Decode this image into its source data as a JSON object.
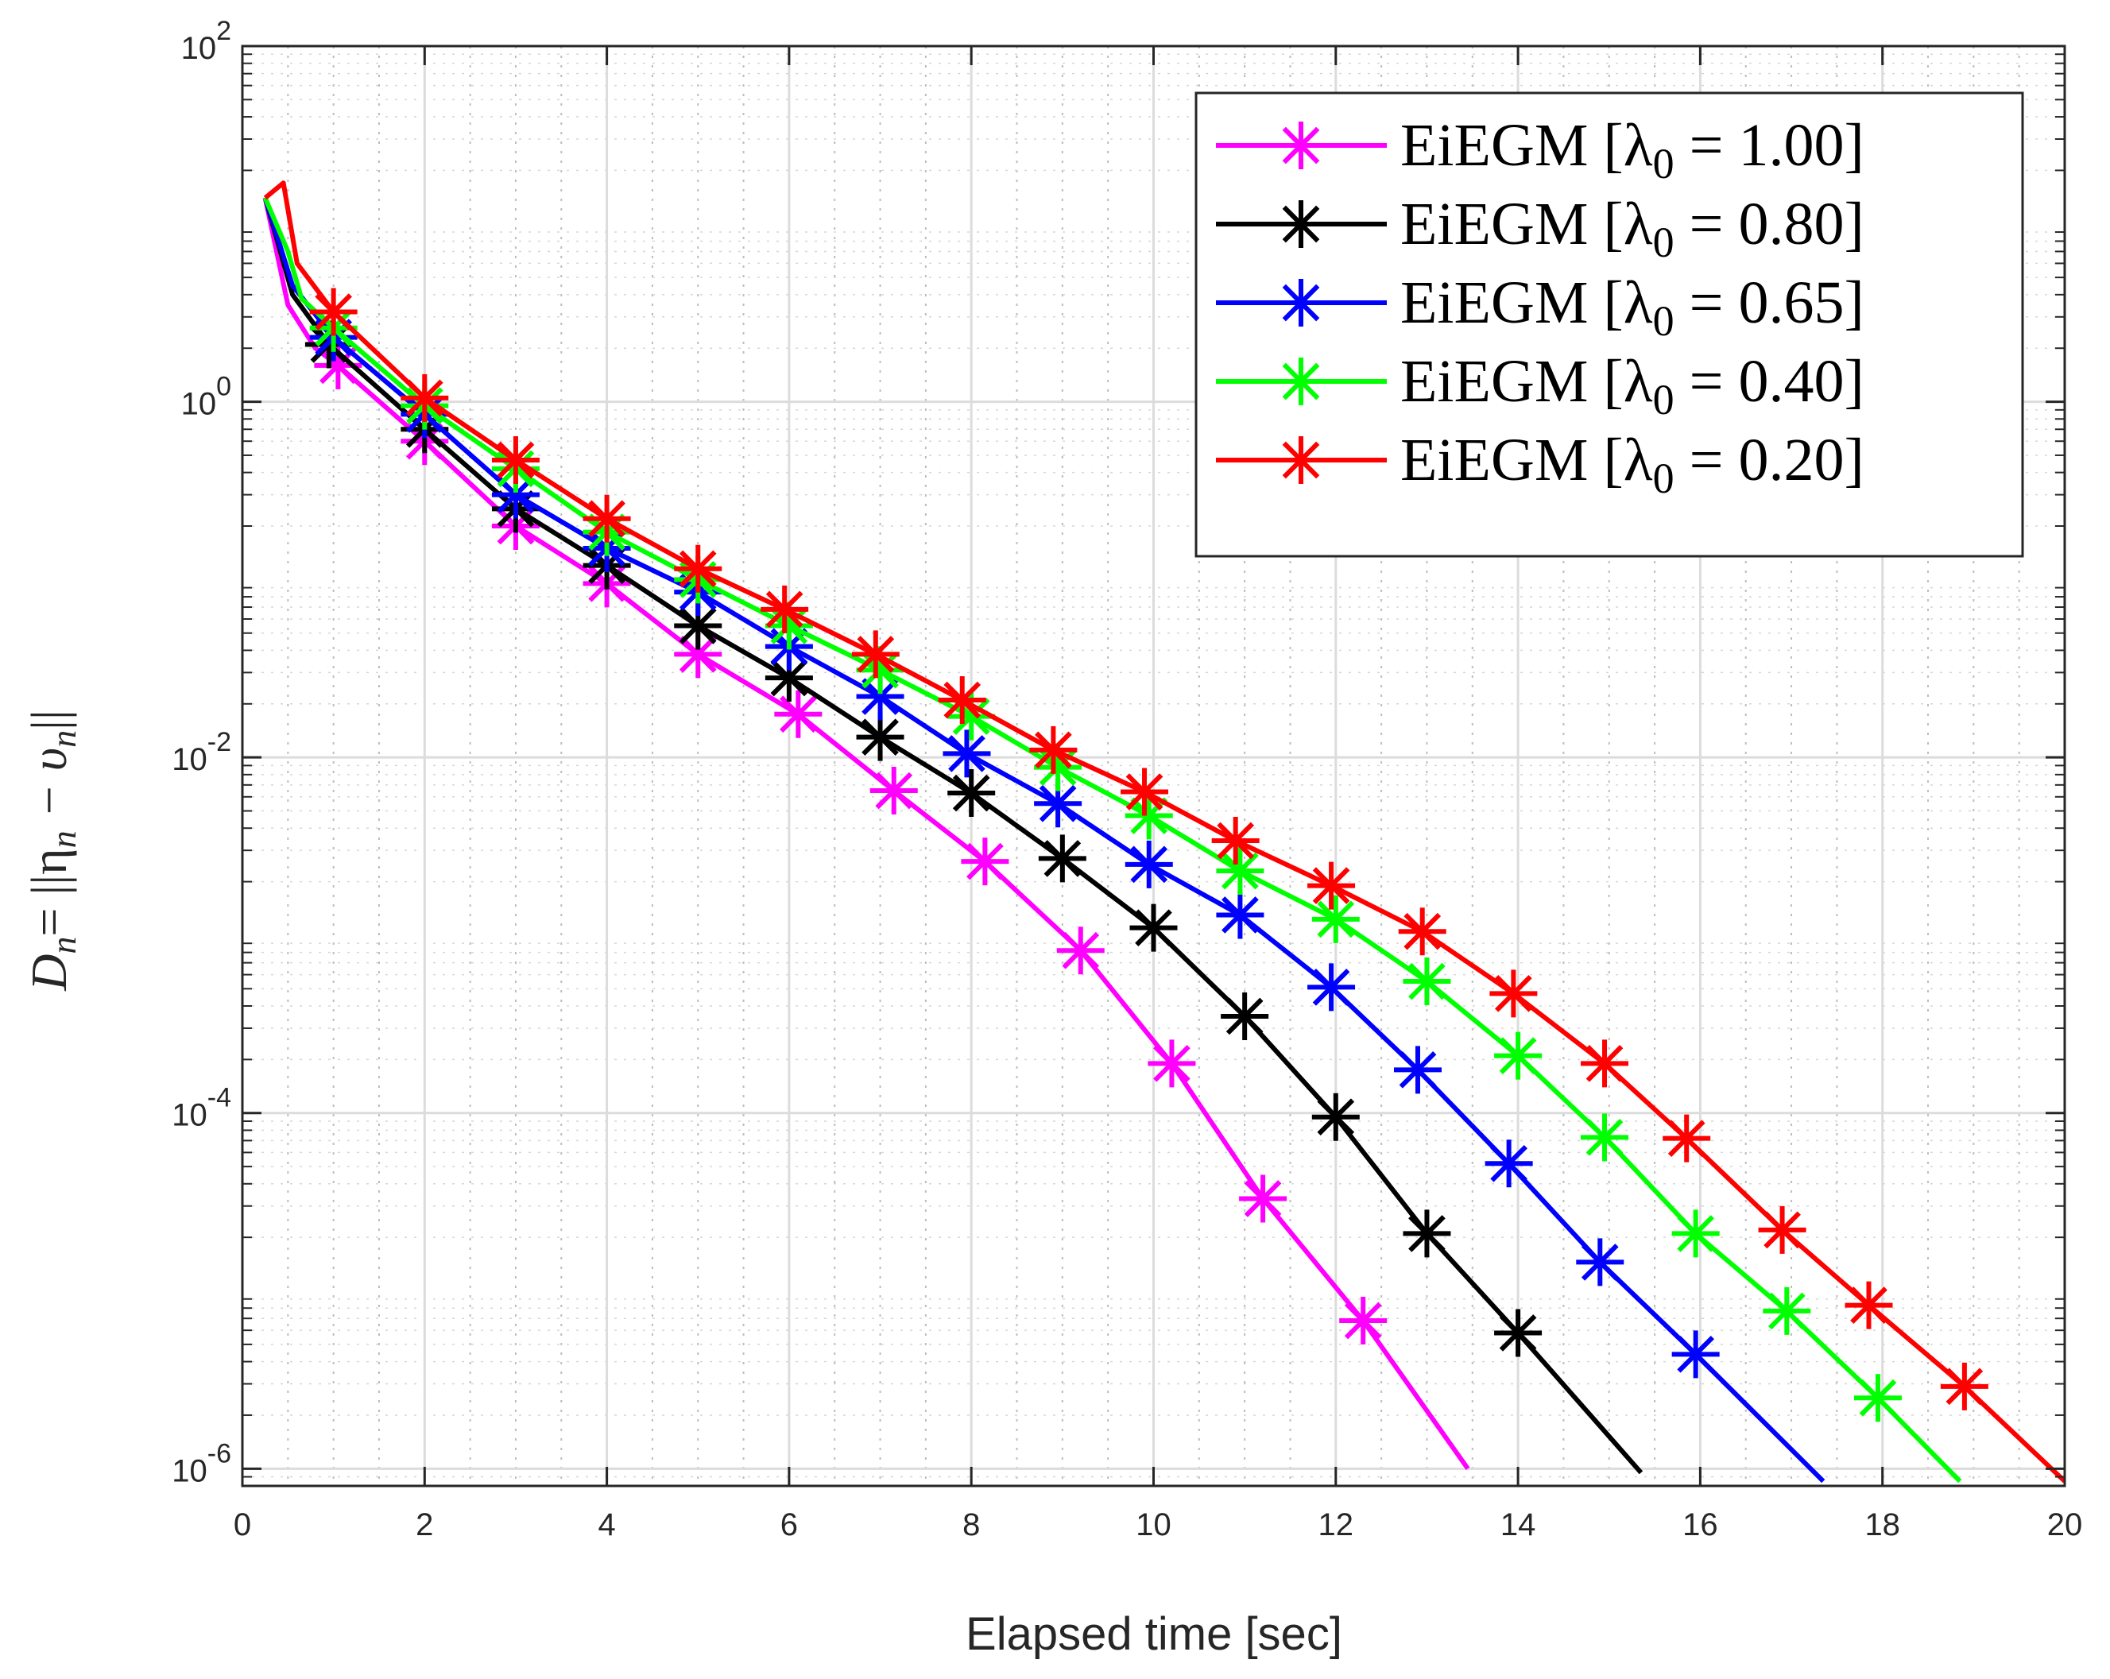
{
  "chart_data": {
    "type": "line",
    "yscale": "log",
    "xlabel": "Elapsed time [sec]",
    "ylabel": {
      "lhs": "D",
      "lhs_sub": "n",
      "rhs": "= ||η",
      "rhs_sub1": "n",
      "minus": " − υ",
      "rhs_sub2": "n",
      "close": "||"
    },
    "xlim": [
      0,
      20
    ],
    "ylim": [
      8e-07,
      100
    ],
    "x_ticks": [
      0,
      2,
      4,
      6,
      8,
      10,
      12,
      14,
      16,
      18,
      20
    ],
    "x_tick_labels": [
      "0",
      "2",
      "4",
      "6",
      "8",
      "10",
      "12",
      "14",
      "16",
      "18",
      "20"
    ],
    "y_ticks": [
      1e-06,
      0.0001,
      0.01,
      1,
      100
    ],
    "y_tick_labels": [
      {
        "base": "10",
        "exp": "-6"
      },
      {
        "base": "10",
        "exp": "-4"
      },
      {
        "base": "10",
        "exp": "-2"
      },
      {
        "base": "10",
        "exp": "0"
      },
      {
        "base": "10",
        "exp": "2"
      }
    ],
    "grid": true,
    "minor_grid_x": true,
    "legend_position": "top-right",
    "series": [
      {
        "name": "EiEGM [λ0 = 1.00]",
        "legend_prefix": "EiEGM [λ",
        "legend_sub": "0",
        "legend_suffix": " = 1.00]",
        "color": "#ff00ff",
        "x": [
          0.25,
          0.5,
          0.8,
          1.05,
          2.0,
          3.0,
          4.0,
          5.0,
          6.1,
          7.15,
          8.15,
          9.2,
          10.2,
          11.2,
          12.3,
          13.45
        ],
        "y": [
          14,
          3.5,
          2.0,
          1.6,
          0.6,
          0.2,
          0.095,
          0.038,
          0.0175,
          0.0065,
          0.0026,
          0.00082,
          0.00019,
          3.3e-05,
          6.8e-06,
          1e-06
        ],
        "marker_x": [
          1.05,
          2.0,
          3.0,
          4.0,
          5.0,
          6.1,
          7.15,
          8.15,
          9.2,
          10.2,
          11.2,
          12.3
        ],
        "marker_y": [
          1.6,
          0.6,
          0.2,
          0.095,
          0.038,
          0.0175,
          0.0065,
          0.0026,
          0.00082,
          0.00019,
          3.3e-05,
          6.8e-06
        ]
      },
      {
        "name": "EiEGM [λ0 = 0.80]",
        "legend_prefix": "EiEGM [λ",
        "legend_sub": "0",
        "legend_suffix": " = 0.80]",
        "color": "#000000",
        "x": [
          0.25,
          0.55,
          0.95,
          2.0,
          3.0,
          4.0,
          5.0,
          6.0,
          7.0,
          8.0,
          9.0,
          10.0,
          11.0,
          12.0,
          13.0,
          14.0,
          15.35
        ],
        "y": [
          14,
          4.0,
          2.1,
          0.7,
          0.25,
          0.12,
          0.055,
          0.028,
          0.013,
          0.0063,
          0.0027,
          0.0011,
          0.00035,
          9.5e-05,
          2.1e-05,
          5.8e-06,
          9.5e-07
        ],
        "marker_x": [
          0.95,
          2.0,
          3.0,
          4.0,
          5.0,
          6.0,
          7.0,
          8.0,
          9.0,
          10.0,
          11.0,
          12.0,
          13.0,
          14.0
        ],
        "marker_y": [
          2.1,
          0.7,
          0.25,
          0.12,
          0.055,
          0.028,
          0.013,
          0.0063,
          0.0027,
          0.0011,
          0.00035,
          9.5e-05,
          2.1e-05,
          5.8e-06
        ]
      },
      {
        "name": "EiEGM [λ0 = 0.65]",
        "legend_prefix": "EiEGM [λ",
        "legend_sub": "0",
        "legend_suffix": " = 0.65]",
        "color": "#0000ff",
        "x": [
          0.25,
          0.55,
          1.0,
          2.0,
          3.0,
          4.0,
          5.0,
          6.0,
          7.0,
          7.95,
          8.95,
          9.95,
          10.95,
          11.95,
          12.9,
          13.9,
          14.9,
          15.95,
          17.35
        ],
        "y": [
          14,
          4.5,
          2.3,
          0.85,
          0.3,
          0.15,
          0.085,
          0.042,
          0.022,
          0.0105,
          0.0055,
          0.0025,
          0.0013,
          0.00051,
          0.000175,
          5.2e-05,
          1.45e-05,
          4.4e-06,
          8.5e-07
        ],
        "marker_x": [
          1.0,
          2.0,
          3.0,
          4.0,
          5.0,
          6.0,
          7.0,
          7.95,
          8.95,
          9.95,
          10.95,
          11.95,
          12.9,
          13.9,
          14.9,
          15.95
        ],
        "marker_y": [
          2.3,
          0.85,
          0.3,
          0.15,
          0.085,
          0.042,
          0.022,
          0.0105,
          0.0055,
          0.0025,
          0.0013,
          0.00051,
          0.000175,
          5.2e-05,
          1.45e-05,
          4.4e-06
        ]
      },
      {
        "name": "EiEGM [λ0 = 0.40]",
        "legend_prefix": "EiEGM [λ",
        "legend_sub": "0",
        "legend_suffix": " = 0.40]",
        "color": "#00ff00",
        "x": [
          0.25,
          0.5,
          0.65,
          1.0,
          2.0,
          3.0,
          4.0,
          5.0,
          6.0,
          7.0,
          8.0,
          8.95,
          9.95,
          10.95,
          12.0,
          13.0,
          14.0,
          14.95,
          15.95,
          16.95,
          17.95,
          18.85
        ],
        "y": [
          14,
          7.0,
          3.8,
          2.6,
          0.95,
          0.42,
          0.185,
          0.1,
          0.055,
          0.031,
          0.017,
          0.0088,
          0.0047,
          0.0023,
          0.00123,
          0.00055,
          0.00021,
          7.3e-05,
          2.1e-05,
          7.7e-06,
          2.5e-06,
          8.5e-07
        ],
        "marker_x": [
          1.0,
          2.0,
          3.0,
          4.0,
          5.0,
          6.0,
          7.0,
          8.0,
          8.95,
          9.95,
          10.95,
          12.0,
          13.0,
          14.0,
          14.95,
          15.95,
          16.95,
          17.95
        ],
        "marker_y": [
          2.6,
          0.95,
          0.42,
          0.185,
          0.1,
          0.055,
          0.031,
          0.017,
          0.0088,
          0.0047,
          0.0023,
          0.00123,
          0.00055,
          0.00021,
          7.3e-05,
          2.1e-05,
          7.7e-06,
          2.5e-06
        ]
      },
      {
        "name": "EiEGM [λ0 = 0.20]",
        "legend_prefix": "EiEGM [λ",
        "legend_sub": "0",
        "legend_suffix": " = 0.20]",
        "color": "#ff0000",
        "x": [
          0.25,
          0.45,
          0.6,
          1.0,
          2.0,
          3.0,
          4.0,
          5.0,
          5.95,
          6.95,
          7.9,
          8.9,
          9.9,
          10.9,
          11.95,
          12.95,
          13.95,
          14.95,
          15.85,
          16.9,
          17.85,
          18.9,
          20.0
        ],
        "y": [
          14,
          17,
          6.0,
          3.2,
          1.05,
          0.47,
          0.22,
          0.115,
          0.068,
          0.038,
          0.021,
          0.011,
          0.0064,
          0.0034,
          0.0019,
          0.00105,
          0.00047,
          0.00019,
          7.2e-05,
          2.2e-05,
          8.3e-06,
          2.9e-06,
          8.5e-07
        ],
        "marker_x": [
          1.0,
          2.0,
          3.0,
          4.0,
          5.0,
          5.95,
          6.95,
          7.9,
          8.9,
          9.9,
          10.9,
          11.95,
          12.95,
          13.95,
          14.95,
          15.85,
          16.9,
          17.85,
          18.9
        ],
        "marker_y": [
          3.2,
          1.05,
          0.47,
          0.22,
          0.115,
          0.068,
          0.038,
          0.021,
          0.011,
          0.0064,
          0.0034,
          0.0019,
          0.00105,
          0.00047,
          0.00019,
          7.2e-05,
          2.2e-05,
          8.3e-06,
          2.9e-06
        ]
      }
    ]
  }
}
